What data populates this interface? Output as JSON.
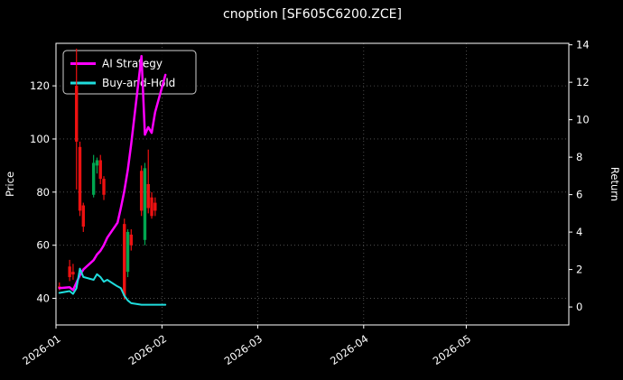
{
  "window": {
    "title": "cnoption [SF605C6200.ZCE]"
  },
  "chart_data": {
    "type": "candlestick+line",
    "title": "cnoption [SF605C6200.ZCE]",
    "xlabel": "",
    "ylabel_left": "Price",
    "ylabel_right": "Return",
    "grid": true,
    "legend_position": "upper left",
    "colors": {
      "background": "#000000",
      "foreground": "#ffffff",
      "grid": "#5c5c5c",
      "spine": "#ffffff",
      "candle_up": "#00a650",
      "candle_down": "#ee1111",
      "ai_strategy": "#ff00ff",
      "buy_and_hold": "#1fdddd"
    },
    "axes": {
      "x_ticks": [
        {
          "label": "2026-01",
          "date": "2026-01-01"
        },
        {
          "label": "2026-02",
          "date": "2026-02-01"
        },
        {
          "label": "2026-03",
          "date": "2026-03-01"
        },
        {
          "label": "2026-04",
          "date": "2026-04-01"
        },
        {
          "label": "2026-05",
          "date": "2026-05-01"
        }
      ],
      "x_range": [
        "2026-01-01",
        "2026-05-31"
      ],
      "price_ticks": [
        40,
        60,
        80,
        100,
        120
      ],
      "price_range": [
        30,
        136
      ],
      "return_ticks": [
        0,
        2,
        4,
        6,
        8,
        10,
        12,
        14
      ],
      "return_range": [
        -0.96,
        14.08
      ]
    },
    "legend": {
      "entries": [
        {
          "label": "AI Strategy",
          "color": "#ff00ff"
        },
        {
          "label": "Buy-and-Hold",
          "color": "#1fdddd"
        }
      ]
    },
    "candles": [
      {
        "date": "2026-01-02",
        "o": 44.5,
        "h": 46.0,
        "l": 43.0,
        "c": 43.8
      },
      {
        "date": "2026-01-05",
        "o": 52.0,
        "h": 54.5,
        "l": 46.5,
        "c": 48.0
      },
      {
        "date": "2026-01-06",
        "o": 50.0,
        "h": 53.0,
        "l": 47.0,
        "c": 49.0
      },
      {
        "date": "2026-01-07",
        "o": 120.0,
        "h": 134.0,
        "l": 81.0,
        "c": 99.0
      },
      {
        "date": "2026-01-08",
        "o": 97.0,
        "h": 99.0,
        "l": 71.0,
        "c": 73.0
      },
      {
        "date": "2026-01-09",
        "o": 75.0,
        "h": 76.0,
        "l": 65.0,
        "c": 67.0
      },
      {
        "date": "2026-01-12",
        "o": 79.0,
        "h": 94.0,
        "l": 78.0,
        "c": 91.0
      },
      {
        "date": "2026-01-13",
        "o": 90.0,
        "h": 93.0,
        "l": 87.0,
        "c": 92.0
      },
      {
        "date": "2026-01-14",
        "o": 92.0,
        "h": 94.0,
        "l": 83.0,
        "c": 85.0
      },
      {
        "date": "2026-01-15",
        "o": 85.0,
        "h": 86.0,
        "l": 77.0,
        "c": 79.0
      },
      {
        "date": "2026-01-21",
        "o": 68.0,
        "h": 70.0,
        "l": 39.5,
        "c": 41.0
      },
      {
        "date": "2026-01-22",
        "o": 50.0,
        "h": 66.0,
        "l": 48.0,
        "c": 65.0
      },
      {
        "date": "2026-01-23",
        "o": 64.0,
        "h": 66.0,
        "l": 58.0,
        "c": 60.0
      },
      {
        "date": "2026-01-26",
        "o": 88.0,
        "h": 90.0,
        "l": 71.0,
        "c": 73.0
      },
      {
        "date": "2026-01-27",
        "o": 62.0,
        "h": 91.0,
        "l": 60.0,
        "c": 89.0
      },
      {
        "date": "2026-01-28",
        "o": 83.0,
        "h": 96.0,
        "l": 72.0,
        "c": 74.0
      },
      {
        "date": "2026-01-29",
        "o": 78.0,
        "h": 80.0,
        "l": 70.0,
        "c": 71.0
      },
      {
        "date": "2026-01-30",
        "o": 76.0,
        "h": 78.0,
        "l": 71.0,
        "c": 73.0
      }
    ],
    "lines": {
      "dates": [
        "2026-01-02",
        "2026-01-05",
        "2026-01-06",
        "2026-01-07",
        "2026-01-08",
        "2026-01-09",
        "2026-01-12",
        "2026-01-13",
        "2026-01-14",
        "2026-01-15",
        "2026-01-16",
        "2026-01-19",
        "2026-01-20",
        "2026-01-21",
        "2026-01-22",
        "2026-01-23",
        "2026-01-26",
        "2026-01-27",
        "2026-01-28",
        "2026-01-29",
        "2026-01-30",
        "2026-02-02"
      ],
      "series": [
        {
          "name": "AI Strategy",
          "axis": "right",
          "color": "#ff00ff",
          "width": 2.5,
          "values": [
            1.0,
            1.05,
            0.9,
            1.3,
            1.7,
            2.0,
            2.5,
            2.8,
            3.0,
            3.3,
            3.7,
            4.5,
            5.3,
            6.2,
            7.3,
            8.7,
            13.4,
            9.2,
            9.6,
            9.3,
            10.4,
            12.4
          ]
        },
        {
          "name": "Buy-and-Hold",
          "axis": "right",
          "color": "#1fdddd",
          "width": 2.0,
          "values": [
            0.75,
            0.85,
            0.7,
            1.0,
            2.05,
            1.6,
            1.45,
            1.75,
            1.6,
            1.35,
            1.45,
            1.1,
            1.0,
            0.6,
            0.35,
            0.2,
            0.12,
            0.12,
            0.12,
            0.12,
            0.12,
            0.12
          ]
        }
      ]
    }
  }
}
